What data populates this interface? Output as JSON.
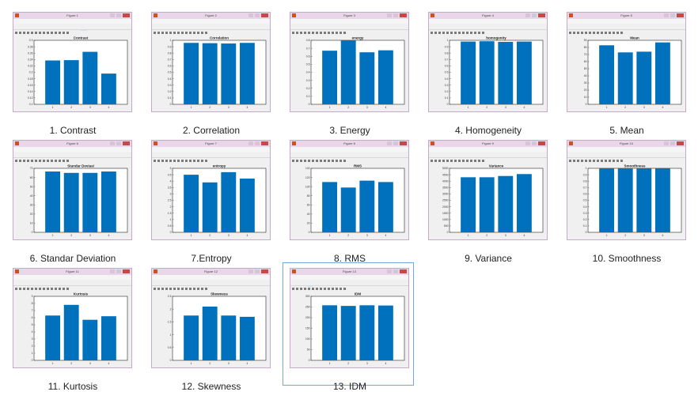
{
  "colors": {
    "bar": "#0072bd",
    "axes_bg": "#ffffff",
    "axes_line": "#262626"
  },
  "menu_items": [
    "File",
    "Edit",
    "View",
    "Insert",
    "Tools",
    "Desktop",
    "Window",
    "Help"
  ],
  "figures": [
    {
      "caption": "1. Contrast",
      "window_title": "Figure 1",
      "highlight_menu": 7,
      "selected": false,
      "chart_data": {
        "type": "bar",
        "title": "Contrast",
        "categories": [
          "1",
          "2",
          "3",
          "4"
        ],
        "values": [
          0.237,
          0.238,
          0.264,
          0.196
        ],
        "ylim": [
          0.1,
          0.3
        ],
        "ytick_step": 0.02,
        "yticks": [
          "0.1",
          "0.12",
          "0.14",
          "0.16",
          "0.18",
          "0.2",
          "0.22",
          "0.24",
          "0.26",
          "0.28",
          "0.3"
        ]
      }
    },
    {
      "caption": "2. Correlation",
      "window_title": "Figure 2",
      "highlight_menu": -1,
      "selected": false,
      "chart_data": {
        "type": "bar",
        "title": "Correlation",
        "categories": [
          "1",
          "2",
          "3",
          "4"
        ],
        "values": [
          0.96,
          0.955,
          0.95,
          0.96
        ],
        "ylim": [
          0,
          1
        ],
        "ytick_step": 0.1,
        "yticks": [
          "0",
          "0.1",
          "0.2",
          "0.3",
          "0.4",
          "0.5",
          "0.6",
          "0.7",
          "0.8",
          "0.9",
          "1"
        ]
      }
    },
    {
      "caption": "3. Energy",
      "window_title": "Figure 3",
      "highlight_menu": -1,
      "selected": false,
      "chart_data": {
        "type": "bar",
        "title": "energy",
        "categories": [
          "1",
          "2",
          "3",
          "4"
        ],
        "values": [
          0.67,
          0.8,
          0.65,
          0.675
        ],
        "ylim": [
          0,
          0.8
        ],
        "ytick_step": 0.1,
        "yticks": [
          "0",
          "0.1",
          "0.2",
          "0.3",
          "0.4",
          "0.5",
          "0.6",
          "0.7",
          "0.8"
        ]
      }
    },
    {
      "caption": "4. Homogeneity",
      "window_title": "Figure 4",
      "highlight_menu": -1,
      "selected": false,
      "chart_data": {
        "type": "bar",
        "title": "homogenity",
        "categories": [
          "1",
          "2",
          "3",
          "4"
        ],
        "values": [
          0.98,
          0.985,
          0.975,
          0.98
        ],
        "ylim": [
          0,
          1
        ],
        "ytick_step": 0.1,
        "yticks": [
          "0",
          "0.1",
          "0.2",
          "0.3",
          "0.4",
          "0.5",
          "0.6",
          "0.7",
          "0.8",
          "0.9",
          "1"
        ]
      }
    },
    {
      "caption": "5. Mean",
      "window_title": "Figure 5",
      "highlight_menu": -1,
      "selected": false,
      "chart_data": {
        "type": "bar",
        "title": "Mean",
        "categories": [
          "1",
          "2",
          "3",
          "4"
        ],
        "values": [
          83,
          73,
          74,
          87
        ],
        "ylim": [
          0,
          90
        ],
        "ytick_step": 10,
        "yticks": [
          "0",
          "10",
          "20",
          "30",
          "40",
          "50",
          "60",
          "70",
          "80",
          "90"
        ]
      }
    },
    {
      "caption": "6. Standar Deviation",
      "window_title": "Figure 6",
      "highlight_menu": -1,
      "selected": false,
      "chart_data": {
        "type": "bar",
        "title": "Standar Deviasi",
        "categories": [
          "1",
          "2",
          "3",
          "4"
        ],
        "values": [
          66.5,
          65,
          65,
          66.5
        ],
        "ylim": [
          0,
          70
        ],
        "ytick_step": 10,
        "yticks": [
          "0",
          "10",
          "20",
          "30",
          "40",
          "50",
          "60",
          "70"
        ]
      }
    },
    {
      "caption": "7.Entropy",
      "window_title": "Figure 7",
      "highlight_menu": -1,
      "selected": false,
      "chart_data": {
        "type": "bar",
        "title": "entropy",
        "categories": [
          "1",
          "2",
          "3",
          "4"
        ],
        "values": [
          4.5,
          3.9,
          4.7,
          4.2
        ],
        "ylim": [
          0,
          5
        ],
        "ytick_step": 0.5,
        "yticks": [
          "0",
          "0.5",
          "1",
          "1.5",
          "2",
          "2.5",
          "3",
          "3.5",
          "4",
          "4.5",
          "5"
        ]
      }
    },
    {
      "caption": "8. RMS",
      "window_title": "Figure 8",
      "highlight_menu": -1,
      "selected": false,
      "chart_data": {
        "type": "bar",
        "title": "RMS",
        "categories": [
          "1",
          "2",
          "3",
          "4"
        ],
        "values": [
          110,
          98,
          113,
          110
        ],
        "ylim": [
          0,
          140
        ],
        "ytick_step": 20,
        "yticks": [
          "0",
          "20",
          "40",
          "60",
          "80",
          "100",
          "120",
          "140"
        ]
      }
    },
    {
      "caption": "9. Variance",
      "window_title": "Figure 9",
      "highlight_menu": -1,
      "selected": false,
      "chart_data": {
        "type": "bar",
        "title": "Variance",
        "categories": [
          "1",
          "2",
          "3",
          "4"
        ],
        "values": [
          4300,
          4300,
          4400,
          4550
        ],
        "ylim": [
          0,
          5000
        ],
        "ytick_step": 500,
        "yticks": [
          "0",
          "500",
          "1000",
          "1500",
          "2000",
          "2500",
          "3000",
          "3500",
          "4000",
          "4500",
          "5000"
        ]
      }
    },
    {
      "caption": "10. Smoothness",
      "window_title": "Figure 10",
      "highlight_menu": -1,
      "selected": false,
      "chart_data": {
        "type": "bar",
        "title": "Smoothness",
        "categories": [
          "1",
          "2",
          "3",
          "4"
        ],
        "values": [
          1,
          1,
          1,
          1
        ],
        "ylim": [
          0,
          1
        ],
        "ytick_step": 0.1,
        "yticks": [
          "0",
          "0.1",
          "0.2",
          "0.3",
          "0.4",
          "0.5",
          "0.6",
          "0.7",
          "0.8",
          "0.9",
          "1"
        ]
      }
    },
    {
      "caption": "11. Kurtosis",
      "window_title": "Figure 11",
      "highlight_menu": -1,
      "selected": false,
      "chart_data": {
        "type": "bar",
        "title": "Kurtosis",
        "categories": [
          "1",
          "2",
          "3",
          "4"
        ],
        "values": [
          6.3,
          7.8,
          5.7,
          6.2
        ],
        "ylim": [
          0,
          9
        ],
        "ytick_step": 1,
        "yticks": [
          "0",
          "1",
          "2",
          "3",
          "4",
          "5",
          "6",
          "7",
          "8",
          "9"
        ]
      }
    },
    {
      "caption": "12. Skewness",
      "window_title": "Figure 12",
      "highlight_menu": -1,
      "selected": false,
      "chart_data": {
        "type": "bar",
        "title": "Skewness",
        "categories": [
          "1",
          "2",
          "3",
          "4"
        ],
        "values": [
          1.75,
          2.1,
          1.75,
          1.7
        ],
        "ylim": [
          0,
          2.5
        ],
        "ytick_step": 0.5,
        "yticks": [
          "0",
          "0.5",
          "1",
          "1.5",
          "2",
          "2.5"
        ]
      }
    },
    {
      "caption": "13. IDM",
      "window_title": "Figure 13",
      "highlight_menu": 2,
      "selected": true,
      "chart_data": {
        "type": "bar",
        "title": "IDM",
        "categories": [
          "1",
          "2",
          "3",
          "4"
        ],
        "values": [
          258,
          255,
          258,
          257
        ],
        "ylim": [
          0,
          300
        ],
        "ytick_step": 50,
        "yticks": [
          "0",
          "50",
          "100",
          "150",
          "200",
          "250",
          "300"
        ]
      }
    }
  ]
}
